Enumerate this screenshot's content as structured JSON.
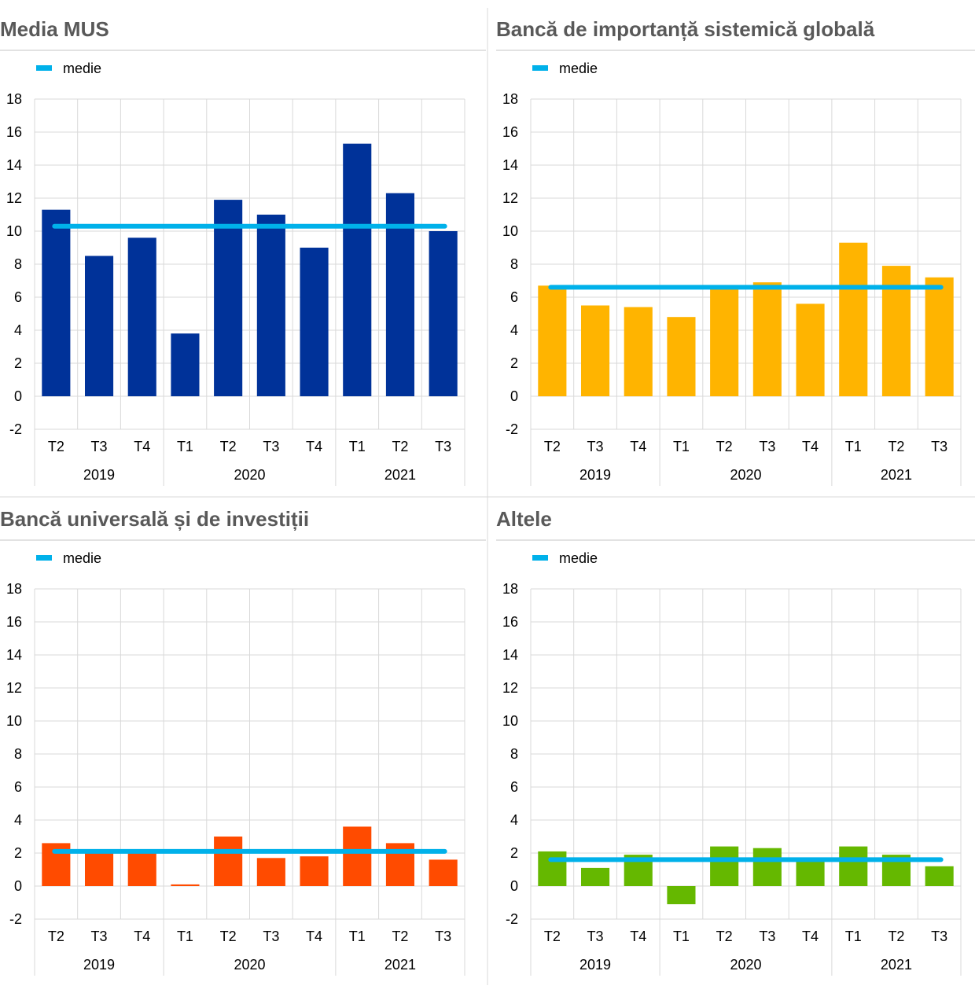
{
  "colors": {
    "mean_line": "#00b1ea",
    "grid": "#d9d9d9",
    "divider": "#d9d9d9"
  },
  "chart_data": [
    {
      "type": "bar",
      "title": "Media MUS",
      "legend": [
        "medie"
      ],
      "legend_position": "top-left",
      "color": "#003299",
      "ylim": [
        -2,
        18
      ],
      "yticks": [
        -2,
        0,
        2,
        4,
        6,
        8,
        10,
        12,
        14,
        16,
        18
      ],
      "categories": [
        "T2",
        "T3",
        "T4",
        "T1",
        "T2",
        "T3",
        "T4",
        "T1",
        "T2",
        "T3"
      ],
      "year_groups": [
        {
          "label": "2019",
          "start": 0,
          "end": 2
        },
        {
          "label": "2020",
          "start": 3,
          "end": 6
        },
        {
          "label": "2021",
          "start": 7,
          "end": 9
        }
      ],
      "values": [
        11.3,
        8.5,
        9.6,
        3.8,
        11.9,
        11.0,
        9.0,
        15.3,
        12.3,
        10.0
      ],
      "mean": 10.3,
      "grid": true
    },
    {
      "type": "bar",
      "title": "Bancă de importanță sistemică globală",
      "legend": [
        "medie"
      ],
      "legend_position": "top-left",
      "color": "#ffb400",
      "ylim": [
        -2,
        18
      ],
      "yticks": [
        -2,
        0,
        2,
        4,
        6,
        8,
        10,
        12,
        14,
        16,
        18
      ],
      "categories": [
        "T2",
        "T3",
        "T4",
        "T1",
        "T2",
        "T3",
        "T4",
        "T1",
        "T2",
        "T3"
      ],
      "year_groups": [
        {
          "label": "2019",
          "start": 0,
          "end": 2
        },
        {
          "label": "2020",
          "start": 3,
          "end": 6
        },
        {
          "label": "2021",
          "start": 7,
          "end": 9
        }
      ],
      "values": [
        6.7,
        5.5,
        5.4,
        4.8,
        6.5,
        6.9,
        5.6,
        9.3,
        7.9,
        7.2
      ],
      "mean": 6.6,
      "grid": true
    },
    {
      "type": "bar",
      "title": "Bancă universală și de investiții",
      "legend": [
        "medie"
      ],
      "legend_position": "top-left",
      "color": "#ff4b00",
      "ylim": [
        -2,
        18
      ],
      "yticks": [
        -2,
        0,
        2,
        4,
        6,
        8,
        10,
        12,
        14,
        16,
        18
      ],
      "categories": [
        "T2",
        "T3",
        "T4",
        "T1",
        "T2",
        "T3",
        "T4",
        "T1",
        "T2",
        "T3"
      ],
      "year_groups": [
        {
          "label": "2019",
          "start": 0,
          "end": 2
        },
        {
          "label": "2020",
          "start": 3,
          "end": 6
        },
        {
          "label": "2021",
          "start": 7,
          "end": 9
        }
      ],
      "values": [
        2.6,
        2.2,
        2.2,
        0.1,
        3.0,
        1.7,
        1.8,
        3.6,
        2.6,
        1.6
      ],
      "mean": 2.1,
      "grid": true
    },
    {
      "type": "bar",
      "title": "Altele",
      "legend": [
        "medie"
      ],
      "legend_position": "top-left",
      "color": "#65b800",
      "ylim": [
        -2,
        18
      ],
      "yticks": [
        -2,
        0,
        2,
        4,
        6,
        8,
        10,
        12,
        14,
        16,
        18
      ],
      "categories": [
        "T2",
        "T3",
        "T4",
        "T1",
        "T2",
        "T3",
        "T4",
        "T1",
        "T2",
        "T3"
      ],
      "year_groups": [
        {
          "label": "2019",
          "start": 0,
          "end": 2
        },
        {
          "label": "2020",
          "start": 3,
          "end": 6
        },
        {
          "label": "2021",
          "start": 7,
          "end": 9
        }
      ],
      "values": [
        2.1,
        1.1,
        1.9,
        -1.1,
        2.4,
        2.3,
        1.6,
        2.4,
        1.9,
        1.2
      ],
      "mean": 1.6,
      "grid": true
    }
  ]
}
